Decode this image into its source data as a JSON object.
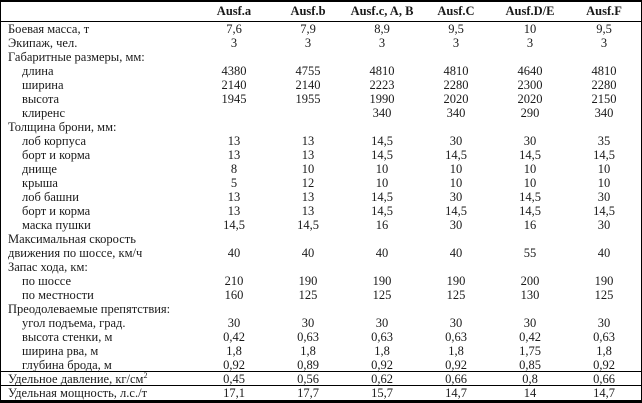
{
  "colors": {
    "border": "#000000",
    "text": "#1a1a1a",
    "background": "#ffffff"
  },
  "table": {
    "header": [
      "Ausf.a",
      "Ausf.b",
      "Ausf.c, A, B",
      "Ausf.C",
      "Ausf.D/E",
      "Ausf.F"
    ],
    "rows": [
      {
        "label": "Боевая масса, т",
        "indent": 0,
        "values": [
          "7,6",
          "7,9",
          "8,9",
          "9,5",
          "10",
          "9,5"
        ]
      },
      {
        "label": "Экипаж, чел.",
        "indent": 0,
        "values": [
          "3",
          "3",
          "3",
          "3",
          "3",
          "3"
        ]
      },
      {
        "label": "Габаритные размеры, мм:",
        "indent": 0,
        "values": [
          "",
          "",
          "",
          "",
          "",
          ""
        ]
      },
      {
        "label": "длина",
        "indent": 1,
        "values": [
          "4380",
          "4755",
          "4810",
          "4810",
          "4640",
          "4810"
        ]
      },
      {
        "label": "ширина",
        "indent": 1,
        "values": [
          "2140",
          "2140",
          "2223",
          "2280",
          "2300",
          "2280"
        ]
      },
      {
        "label": "высота",
        "indent": 1,
        "values": [
          "1945",
          "1955",
          "1990",
          "2020",
          "2020",
          "2150"
        ]
      },
      {
        "label": "клиренс",
        "indent": 1,
        "values": [
          "",
          "",
          "340",
          "340",
          "290",
          "340"
        ]
      },
      {
        "label": "Толщина брони, мм:",
        "indent": 0,
        "values": [
          "",
          "",
          "",
          "",
          "",
          ""
        ]
      },
      {
        "label": "лоб корпуса",
        "indent": 1,
        "values": [
          "13",
          "13",
          "14,5",
          "30",
          "30",
          "35"
        ]
      },
      {
        "label": "борт и корма",
        "indent": 1,
        "values": [
          "13",
          "13",
          "14,5",
          "14,5",
          "14,5",
          "14,5"
        ]
      },
      {
        "label": "днище",
        "indent": 1,
        "values": [
          "8",
          "10",
          "10",
          "10",
          "10",
          "10"
        ]
      },
      {
        "label": "крыша",
        "indent": 1,
        "values": [
          "5",
          "12",
          "10",
          "10",
          "10",
          "10"
        ]
      },
      {
        "label": "лоб башни",
        "indent": 1,
        "values": [
          "13",
          "13",
          "14,5",
          "30",
          "14,5",
          "30"
        ]
      },
      {
        "label": "борт и корма",
        "indent": 1,
        "values": [
          "13",
          "13",
          "14,5",
          "14,5",
          "14,5",
          "14,5"
        ]
      },
      {
        "label": "маска пушки",
        "indent": 1,
        "values": [
          "14,5",
          "14,5",
          "16",
          "30",
          "16",
          "30"
        ]
      },
      {
        "label": "Максимальная скорость",
        "indent": 0,
        "values": [
          "",
          "",
          "",
          "",
          "",
          ""
        ]
      },
      {
        "label": "движения по шоссе, км/ч",
        "indent": 0,
        "values": [
          "40",
          "40",
          "40",
          "40",
          "55",
          "40"
        ]
      },
      {
        "label": "Запас хода, км:",
        "indent": 0,
        "values": [
          "",
          "",
          "",
          "",
          "",
          ""
        ]
      },
      {
        "label": "по шоссе",
        "indent": 1,
        "values": [
          "210",
          "190",
          "190",
          "190",
          "200",
          "190"
        ]
      },
      {
        "label": "по местности",
        "indent": 1,
        "values": [
          "160",
          "125",
          "125",
          "125",
          "130",
          "125"
        ]
      },
      {
        "label": "Преодолеваемые препятствия:",
        "indent": 0,
        "values": [
          "",
          "",
          "",
          "",
          "",
          ""
        ]
      },
      {
        "label": "угол подъема, град.",
        "indent": 1,
        "values": [
          "30",
          "30",
          "30",
          "30",
          "30",
          "30"
        ]
      },
      {
        "label": "высота стенки, м",
        "indent": 1,
        "values": [
          "0,42",
          "0,63",
          "0,63",
          "0,63",
          "0,42",
          "0,63"
        ]
      },
      {
        "label": "ширина рва, м",
        "indent": 1,
        "values": [
          "1,8",
          "1,8",
          "1,8",
          "1,8",
          "1,75",
          "1,8"
        ]
      },
      {
        "label": "глубина брода, м",
        "indent": 1,
        "values": [
          "0,92",
          "0,89",
          "0,92",
          "0,92",
          "0,85",
          "0,92"
        ],
        "rule_below": true
      },
      {
        "label": "Удельное давление, кг/см",
        "label_sup": "2",
        "indent": 0,
        "values": [
          "0,45",
          "0,56",
          "0,62",
          "0,66",
          "0,8",
          "0,66"
        ],
        "rule_below": true
      },
      {
        "label": "Удельная мощность, л.с./т",
        "indent": 0,
        "values": [
          "17,1",
          "17,7",
          "15,7",
          "14,7",
          "14",
          "14,7"
        ]
      }
    ]
  }
}
